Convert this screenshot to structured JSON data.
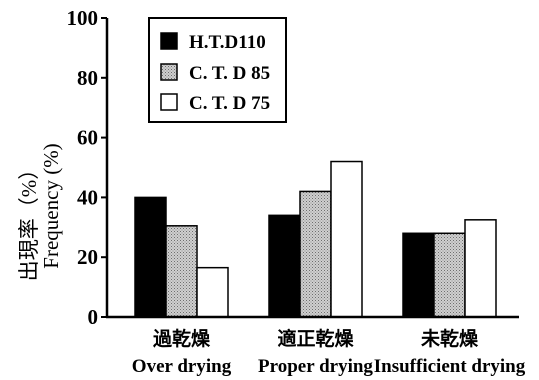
{
  "chart_data": {
    "type": "bar",
    "ylabel_top": "出現率（%）",
    "ylabel_bottom": "Frequency (%)",
    "ylim": [
      0,
      100
    ],
    "yticks": [
      "0",
      "20",
      "40",
      "60",
      "80",
      "100"
    ],
    "categories": [
      {
        "jp": "過乾燥",
        "en": "Over drying"
      },
      {
        "jp": "適正乾燥",
        "en": "Proper drying"
      },
      {
        "jp": "未乾燥",
        "en": "Insufficient drying"
      }
    ],
    "series": [
      {
        "name": "H.T.D110",
        "fill": "#000000",
        "pattern": "solid",
        "values": [
          40,
          34,
          28
        ]
      },
      {
        "name": "C. T. D 85",
        "fill": "#b4b4b4",
        "pattern": "dotted",
        "values": [
          30.5,
          42,
          28
        ]
      },
      {
        "name": "C. T. D 75",
        "fill": "#ffffff",
        "pattern": "none",
        "values": [
          16.5,
          52,
          32.5
        ]
      }
    ],
    "legend_position": "top-left-inside",
    "grid": false
  }
}
